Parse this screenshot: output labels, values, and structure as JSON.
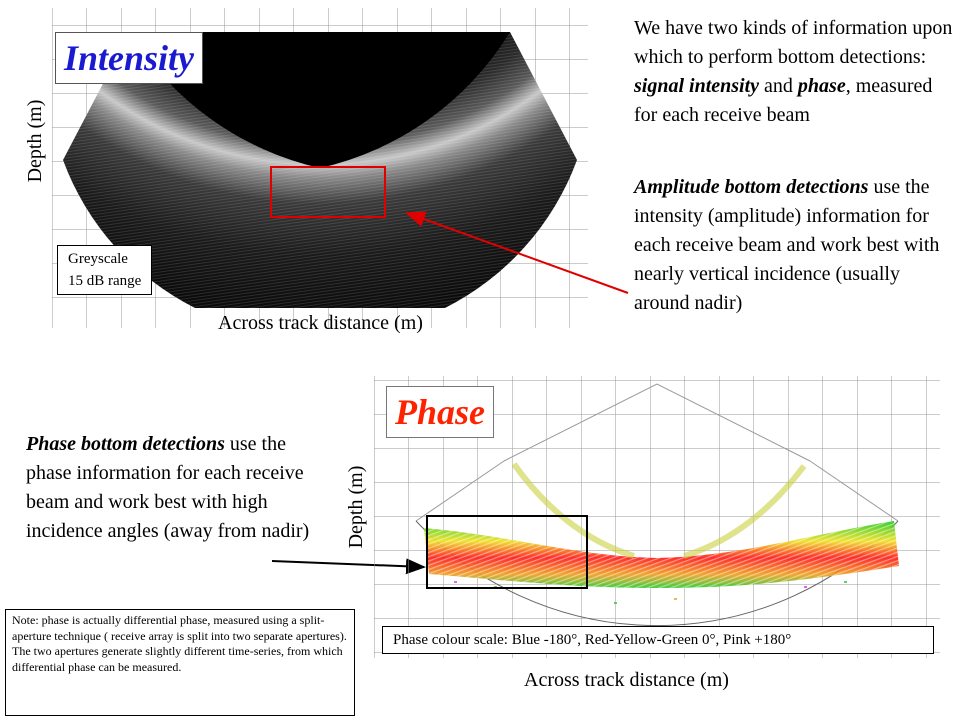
{
  "intensity_panel": {
    "title": "Intensity",
    "y_label": "Depth (m)",
    "x_label": "Across track distance (m)",
    "scale_note_line1": "Greyscale",
    "scale_note_line2": "15 dB range"
  },
  "phase_panel": {
    "title": "Phase",
    "y_label": "Depth (m)",
    "x_label": "Across track distance (m)",
    "colour_scale": "Phase colour scale: Blue -180°, Red-Yellow-Green   0°, Pink +180°"
  },
  "text_blocks": {
    "intro": {
      "t1": "We have two kinds of information upon which to perform bottom detections: ",
      "b1": "signal intensity",
      "t2": " and ",
      "b2": "phase",
      "t3": ", measured for each receive beam"
    },
    "amplitude": {
      "b1": "Amplitude bottom detections",
      "t1": " use the intensity (amplitude) information for each receive beam and work best with nearly vertical incidence (usually around nadir)"
    },
    "phase": {
      "b1": "Phase bottom detections",
      "t1": " use the phase information for each receive beam and work best with high incidence angles (away from nadir)"
    },
    "note": "Note: phase is actually differential phase, measured using a split-aperture technique ( receive array is split into two separate apertures).  The two apertures generate slightly different time-series, from which differential phase can be measured."
  },
  "colors": {
    "intensity_title": "#1a1ad0",
    "phase_title": "#ff2200",
    "highlight_box": "#e00000",
    "arrow_red": "#e00000",
    "arrow_black": "#000000"
  }
}
